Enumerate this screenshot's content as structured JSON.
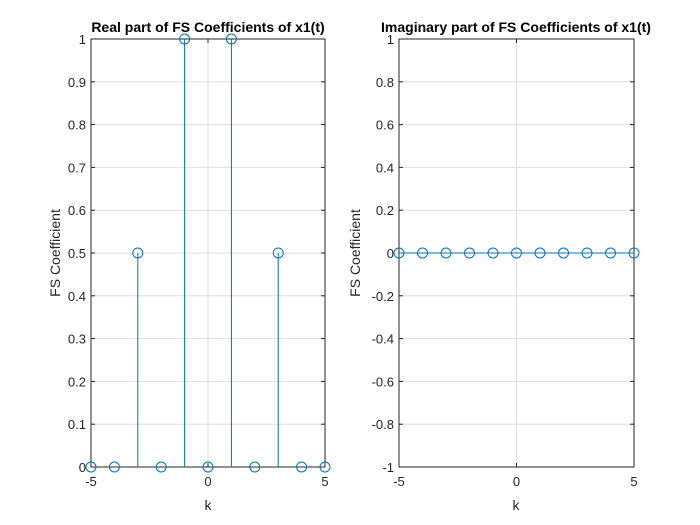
{
  "chart_data": [
    {
      "type": "stem",
      "title": "Real part of FS Coefficients of x1(t)",
      "xlabel": "k",
      "ylabel": "FS Coefficient",
      "xlim": [
        -5,
        5
      ],
      "ylim": [
        0,
        1
      ],
      "xticks": [
        "-5",
        "0",
        "5"
      ],
      "yticks": [
        "0",
        "0.1",
        "0.2",
        "0.3",
        "0.4",
        "0.5",
        "0.6",
        "0.7",
        "0.8",
        "0.9",
        "1"
      ],
      "grid": true,
      "color": "#0072bd",
      "x": [
        -5,
        -4,
        -3,
        -2,
        -1,
        0,
        1,
        2,
        3,
        4,
        5
      ],
      "y": [
        0,
        0,
        0.5,
        0,
        1,
        0,
        1,
        0,
        0.5,
        0,
        0
      ]
    },
    {
      "type": "stem",
      "title": "Imaginary part of FS Coefficients of x1(t)",
      "xlabel": "k",
      "ylabel": "FS Coefficient",
      "xlim": [
        -5,
        5
      ],
      "ylim": [
        -1,
        1
      ],
      "xticks": [
        "-5",
        "0",
        "5"
      ],
      "yticks": [
        "-1",
        "-0.8",
        "-0.6",
        "-0.4",
        "-0.2",
        "0",
        "0.2",
        "0.4",
        "0.6",
        "0.8",
        "1"
      ],
      "grid": true,
      "color": "#0072bd",
      "x": [
        -5,
        -4,
        -3,
        -2,
        -1,
        0,
        1,
        2,
        3,
        4,
        5
      ],
      "y": [
        0,
        0,
        0,
        0,
        0,
        0,
        0,
        0,
        0,
        0,
        0
      ]
    }
  ]
}
